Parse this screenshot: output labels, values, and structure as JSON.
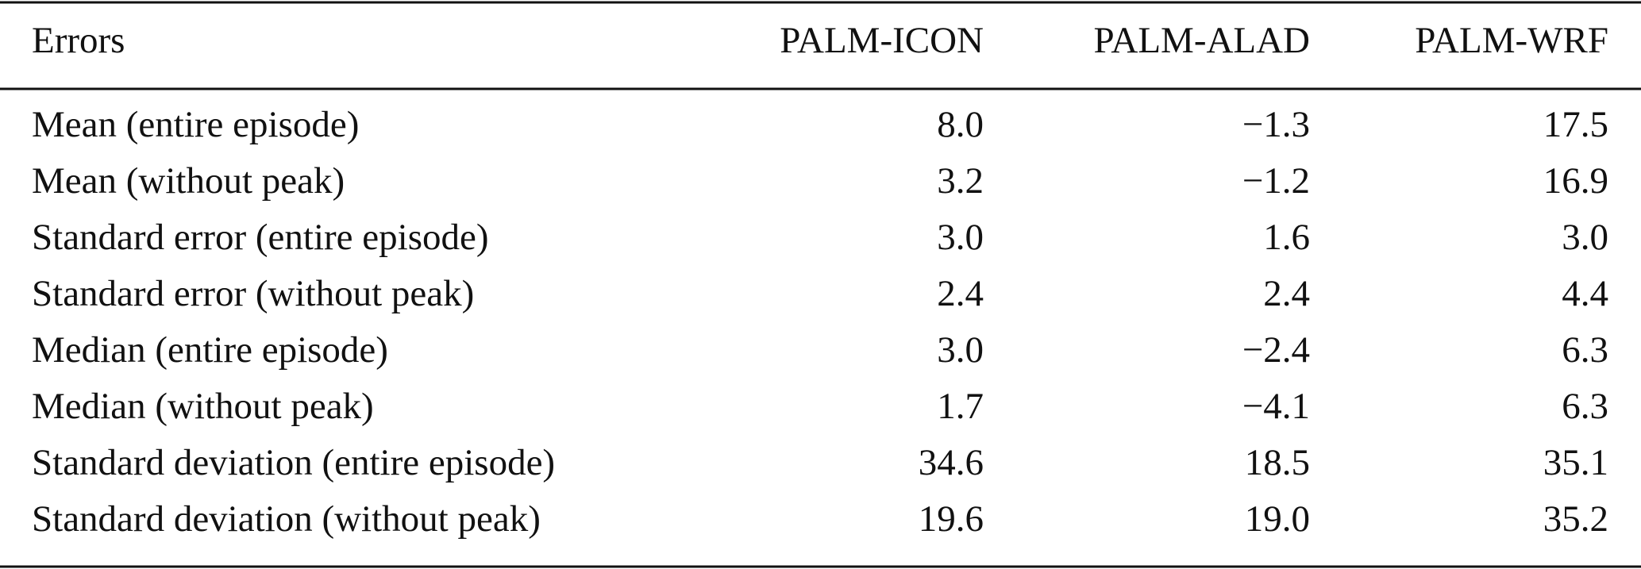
{
  "table": {
    "header": [
      "Errors",
      "PALM-ICON",
      "PALM-ALAD",
      "PALM-WRF"
    ],
    "rows": [
      [
        "Mean (entire episode)",
        "8.0",
        "−1.3",
        "17.5"
      ],
      [
        "Mean (without peak)",
        "3.2",
        "−1.2",
        "16.9"
      ],
      [
        "Standard error (entire episode)",
        "3.0",
        "1.6",
        "3.0"
      ],
      [
        "Standard error (without peak)",
        "2.4",
        "2.4",
        "4.4"
      ],
      [
        "Median (entire episode)",
        "3.0",
        "−2.4",
        "6.3"
      ],
      [
        "Median (without peak)",
        "1.7",
        "−4.1",
        "6.3"
      ],
      [
        "Standard deviation (entire episode)",
        "34.6",
        "18.5",
        "35.1"
      ],
      [
        "Standard deviation (without peak)",
        "19.6",
        "19.0",
        "35.2"
      ]
    ]
  }
}
